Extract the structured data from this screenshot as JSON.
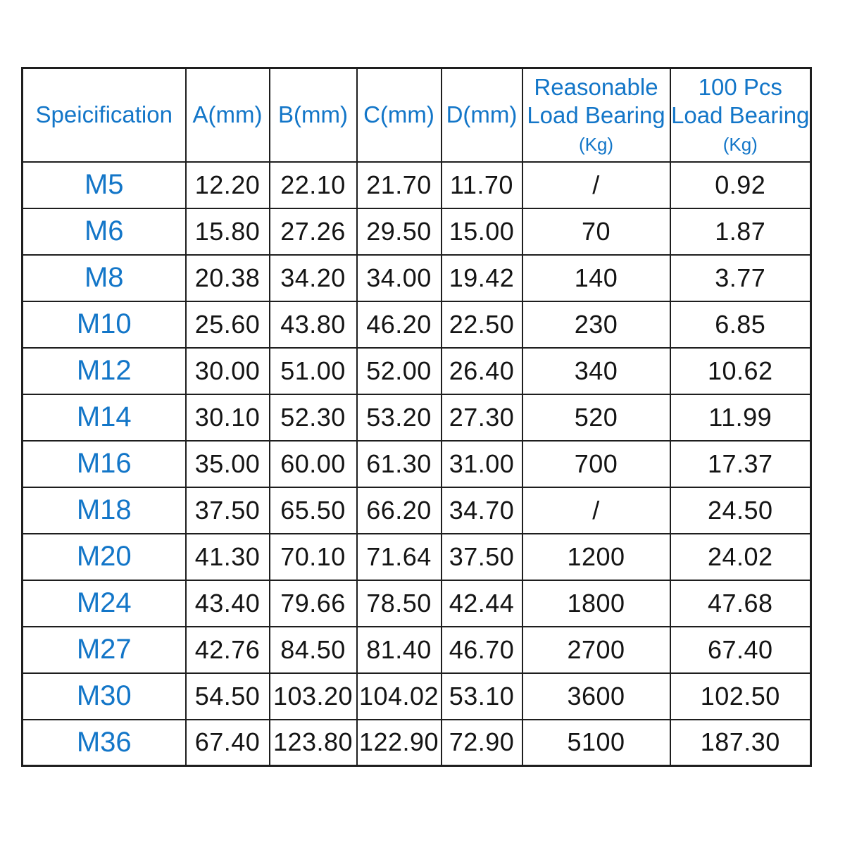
{
  "colors": {
    "accent_blue": "#1376c8",
    "value_text": "#141414",
    "grid_line": "#1e1e1e",
    "background": "#ffffff"
  },
  "chart_data": {
    "type": "table",
    "title": "",
    "columns": [
      {
        "id": "specification",
        "lines": [
          "Speicification"
        ],
        "sub": ""
      },
      {
        "id": "a-mm",
        "lines": [
          "A(mm)"
        ],
        "sub": ""
      },
      {
        "id": "b-mm",
        "lines": [
          "B(mm)"
        ],
        "sub": ""
      },
      {
        "id": "c-mm",
        "lines": [
          "C(mm)"
        ],
        "sub": ""
      },
      {
        "id": "d-mm",
        "lines": [
          "D(mm)"
        ],
        "sub": ""
      },
      {
        "id": "reasonable-load-bearing",
        "lines": [
          "Reasonable",
          "Load Bearing"
        ],
        "sub": "(Kg)"
      },
      {
        "id": "100-pcs-load-bearing",
        "lines": [
          "100 Pcs",
          "Load Bearing"
        ],
        "sub": "(Kg)"
      }
    ],
    "rows": [
      [
        "M5",
        "12.20",
        "22.10",
        "21.70",
        "11.70",
        "/",
        "0.92"
      ],
      [
        "M6",
        "15.80",
        "27.26",
        "29.50",
        "15.00",
        "70",
        "1.87"
      ],
      [
        "M8",
        "20.38",
        "34.20",
        "34.00",
        "19.42",
        "140",
        "3.77"
      ],
      [
        "M10",
        "25.60",
        "43.80",
        "46.20",
        "22.50",
        "230",
        "6.85"
      ],
      [
        "M12",
        "30.00",
        "51.00",
        "52.00",
        "26.40",
        "340",
        "10.62"
      ],
      [
        "M14",
        "30.10",
        "52.30",
        "53.20",
        "27.30",
        "520",
        "11.99"
      ],
      [
        "M16",
        "35.00",
        "60.00",
        "61.30",
        "31.00",
        "700",
        "17.37"
      ],
      [
        "M18",
        "37.50",
        "65.50",
        "66.20",
        "34.70",
        "/",
        "24.50"
      ],
      [
        "M20",
        "41.30",
        "70.10",
        "71.64",
        "37.50",
        "1200",
        "24.02"
      ],
      [
        "M24",
        "43.40",
        "79.66",
        "78.50",
        "42.44",
        "1800",
        "47.68"
      ],
      [
        "M27",
        "42.76",
        "84.50",
        "81.40",
        "46.70",
        "2700",
        "67.40"
      ],
      [
        "M30",
        "54.50",
        "103.20",
        "104.02",
        "53.10",
        "3600",
        "102.50"
      ],
      [
        "M36",
        "67.40",
        "123.80",
        "122.90",
        "72.90",
        "5100",
        "187.30"
      ]
    ]
  }
}
